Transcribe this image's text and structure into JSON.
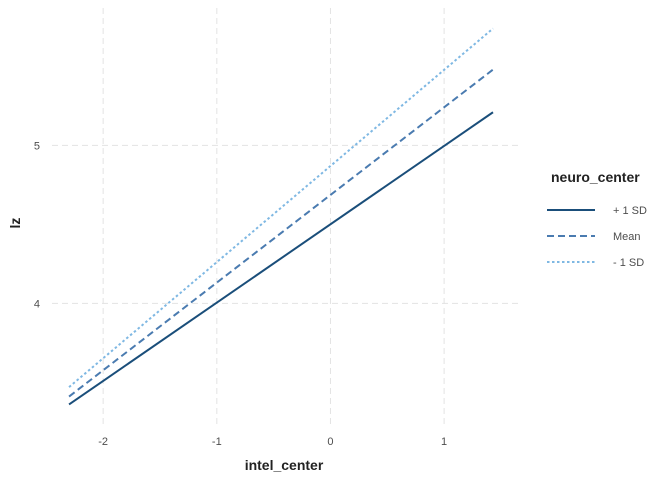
{
  "chart_data": {
    "type": "line",
    "title": "",
    "xlabel": "intel_center",
    "ylabel": "lz",
    "xlim": [
      -2.45,
      1.65
    ],
    "ylim": [
      3.23,
      5.87
    ],
    "xticks": [
      -2,
      -1,
      0,
      1
    ],
    "xtick_labels": [
      "-2",
      "-1",
      "0",
      "1"
    ],
    "yticks": [
      4,
      5
    ],
    "ytick_labels": [
      "4",
      "5"
    ],
    "grid": true,
    "legend": {
      "title": "neuro_center",
      "position": "right"
    },
    "series": [
      {
        "name": "+ 1 SD",
        "x": [
          -2.3,
          1.43
        ],
        "y": [
          3.36,
          5.21
        ],
        "color": "#1a4e7a",
        "dash": "solid"
      },
      {
        "name": "Mean",
        "x": [
          -2.3,
          1.43
        ],
        "y": [
          3.41,
          5.48
        ],
        "color": "#4a7bb0",
        "dash": "dashed"
      },
      {
        "name": "- 1 SD",
        "x": [
          -2.3,
          1.43
        ],
        "y": [
          3.47,
          5.74
        ],
        "color": "#7fb8e3",
        "dash": "dotted"
      }
    ]
  }
}
